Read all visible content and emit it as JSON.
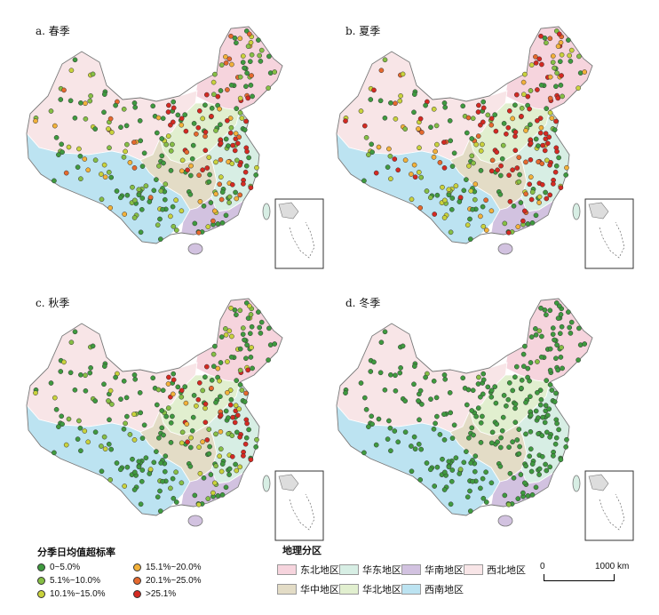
{
  "panels": [
    {
      "id": "a",
      "title": "a. 春季"
    },
    {
      "id": "b",
      "title": "b. 夏季"
    },
    {
      "id": "c",
      "title": "c. 秋季"
    },
    {
      "id": "d",
      "title": "d. 冬季"
    }
  ],
  "rate_legend": {
    "title": "分季日均值超标率",
    "items": [
      {
        "label": "0~5.0%",
        "color": "#3f9a3f"
      },
      {
        "label": "15.1%~20.0%",
        "color": "#f2b13a"
      },
      {
        "label": "5.1%~10.0%",
        "color": "#86bf45"
      },
      {
        "label": "20.1%~25.0%",
        "color": "#e5692e"
      },
      {
        "label": "10.1%~15.0%",
        "color": "#c9d23c"
      },
      {
        "label": ">25.1%",
        "color": "#d42a22"
      }
    ]
  },
  "region_legend": {
    "title": "地理分区",
    "items": [
      {
        "label": "东北地区",
        "color": "#f6d4dd"
      },
      {
        "label": "华东地区",
        "color": "#d7eee4"
      },
      {
        "label": "华南地区",
        "color": "#d2c2e0"
      },
      {
        "label": "西北地区",
        "color": "#f8e5e7"
      },
      {
        "label": "华中地区",
        "color": "#e3dcc6"
      },
      {
        "label": "华北地区",
        "color": "#e1efcf"
      },
      {
        "label": "西南地区",
        "color": "#bce3f1"
      }
    ]
  },
  "scale_bar": {
    "start": "0",
    "end": "1000 km"
  },
  "season_mix": {
    "a": [
      0.35,
      0.15,
      0.1,
      0.1,
      0.1,
      0.2
    ],
    "b": [
      0.25,
      0.1,
      0.1,
      0.1,
      0.1,
      0.35
    ],
    "c": [
      0.5,
      0.15,
      0.12,
      0.1,
      0.06,
      0.07
    ],
    "d": [
      0.97,
      0.03,
      0,
      0,
      0,
      0
    ]
  }
}
